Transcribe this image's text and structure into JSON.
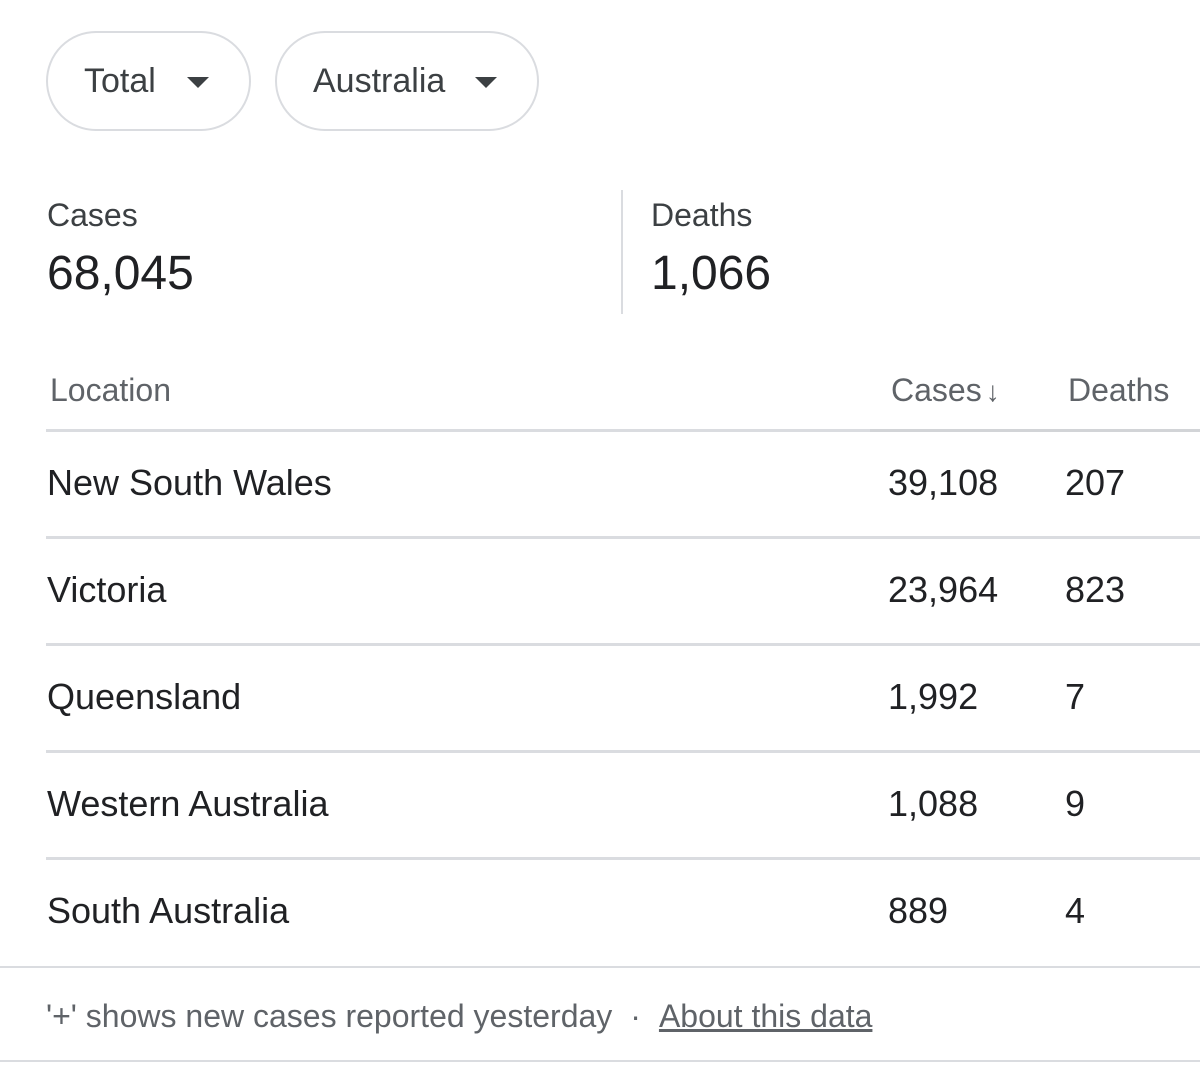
{
  "filters": {
    "metric": "Total",
    "region": "Australia"
  },
  "summary": {
    "cases_label": "Cases",
    "cases_value": "68,045",
    "deaths_label": "Deaths",
    "deaths_value": "1,066"
  },
  "table": {
    "headers": {
      "location": "Location",
      "cases": "Cases",
      "cases_sort_indicator": "↓",
      "deaths": "Deaths"
    },
    "rows": [
      {
        "location": "New South Wales",
        "cases": "39,108",
        "deaths": "207"
      },
      {
        "location": "Victoria",
        "cases": "23,964",
        "deaths": "823"
      },
      {
        "location": "Queensland",
        "cases": "1,992",
        "deaths": "7"
      },
      {
        "location": "Western Australia",
        "cases": "1,088",
        "deaths": "9"
      },
      {
        "location": "South Australia",
        "cases": "889",
        "deaths": "4"
      }
    ]
  },
  "footer": {
    "note": "'+' shows new cases reported yesterday",
    "separator": "·",
    "link": "About this data"
  },
  "icons": {
    "dropdown": "caret-down-icon",
    "sort": "arrow-down-icon"
  }
}
